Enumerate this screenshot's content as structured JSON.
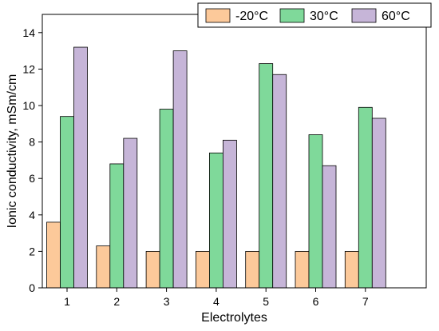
{
  "chart_data": {
    "type": "bar",
    "title": "",
    "xlabel": "Electrolytes",
    "ylabel": "Ionic conductivity, mSm/cm",
    "categories": [
      "1",
      "2",
      "3",
      "4",
      "5",
      "6",
      "7"
    ],
    "ylim": [
      0,
      15
    ],
    "yticks": [
      0,
      2,
      4,
      6,
      8,
      10,
      12,
      14
    ],
    "grid": false,
    "legend_position": "top-right",
    "series": [
      {
        "name": "-20°C",
        "color": "#fcc99a",
        "values": [
          3.6,
          2.3,
          2.0,
          2.0,
          2.0,
          2.0,
          2.0
        ]
      },
      {
        "name": "30°C",
        "color": "#7fd99a",
        "values": [
          9.4,
          6.8,
          9.8,
          7.4,
          12.3,
          8.4,
          9.9
        ]
      },
      {
        "name": "60°C",
        "color": "#c6b5d8",
        "values": [
          13.2,
          8.2,
          13.0,
          8.1,
          11.7,
          6.7,
          9.3
        ]
      }
    ]
  }
}
